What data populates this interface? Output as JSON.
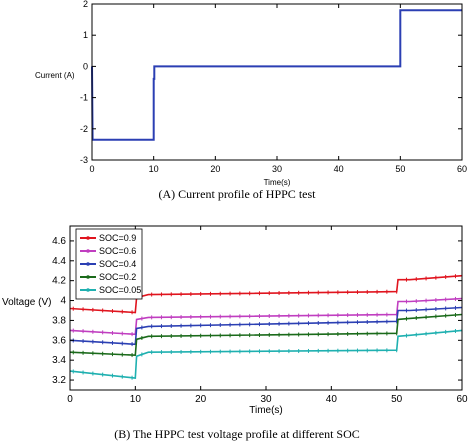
{
  "chart_data": [
    {
      "type": "line",
      "title": "",
      "caption": "(A) Current profile of HPPC test",
      "xlabel": "Time(s)",
      "ylabel": "Current (A)",
      "xlim": [
        0,
        60
      ],
      "ylim": [
        -3,
        2
      ],
      "xticks": [
        "0",
        "10",
        "20",
        "30",
        "40",
        "50",
        "60"
      ],
      "yticks": [
        "-3",
        "-2",
        "-1",
        "0",
        "1",
        "2"
      ],
      "grid": false,
      "series": [
        {
          "color": "#2b3fb3",
          "x": [
            0,
            0.1,
            10,
            10,
            10.1,
            10.1,
            50,
            50,
            60
          ],
          "y": [
            0,
            -2.35,
            -2.35,
            -0.4,
            -0.4,
            0,
            0,
            1.8,
            1.8
          ]
        }
      ]
    },
    {
      "type": "line",
      "title": "",
      "caption": "(B)  The HPPC test voltage profile at different SOC",
      "xlabel": "Time(s)",
      "ylabel": "Voltage (V)",
      "xlim": [
        0,
        60
      ],
      "ylim": [
        3.1,
        4.75
      ],
      "xticks": [
        "0",
        "10",
        "20",
        "30",
        "40",
        "50",
        "60"
      ],
      "yticks": [
        "3.2",
        "3.4",
        "3.6",
        "3.8",
        "4",
        "4.2",
        "4.4",
        "4.6"
      ],
      "grid": false,
      "legend_position": "top-left",
      "series": [
        {
          "name": "SOC=0.9",
          "color": "#e0141e",
          "x": [
            0,
            10,
            10.2,
            12,
            50,
            50.2,
            52,
            60
          ],
          "y": [
            3.92,
            3.88,
            4.03,
            4.06,
            4.09,
            4.21,
            4.21,
            4.25
          ]
        },
        {
          "name": "SOC=0.6",
          "color": "#c03ec0",
          "x": [
            0,
            10,
            10.2,
            12,
            50,
            50.2,
            52,
            60
          ],
          "y": [
            3.7,
            3.66,
            3.81,
            3.83,
            3.86,
            3.99,
            3.99,
            4.02
          ]
        },
        {
          "name": "SOC=0.4",
          "color": "#2b3fb3",
          "x": [
            0,
            10,
            10.2,
            12,
            50,
            50.2,
            52,
            60
          ],
          "y": [
            3.6,
            3.56,
            3.72,
            3.74,
            3.79,
            3.9,
            3.9,
            3.93
          ]
        },
        {
          "name": "SOC=0.2",
          "color": "#1a6a1a",
          "x": [
            0,
            10,
            10.2,
            12,
            50,
            50.2,
            52,
            60
          ],
          "y": [
            3.48,
            3.45,
            3.61,
            3.64,
            3.67,
            3.81,
            3.82,
            3.86
          ]
        },
        {
          "name": "SOC=0.05",
          "color": "#1fb0b0",
          "x": [
            0,
            10,
            10.2,
            12,
            50,
            50.2,
            52,
            60
          ],
          "y": [
            3.29,
            3.22,
            3.44,
            3.48,
            3.5,
            3.64,
            3.65,
            3.7
          ]
        }
      ]
    }
  ]
}
